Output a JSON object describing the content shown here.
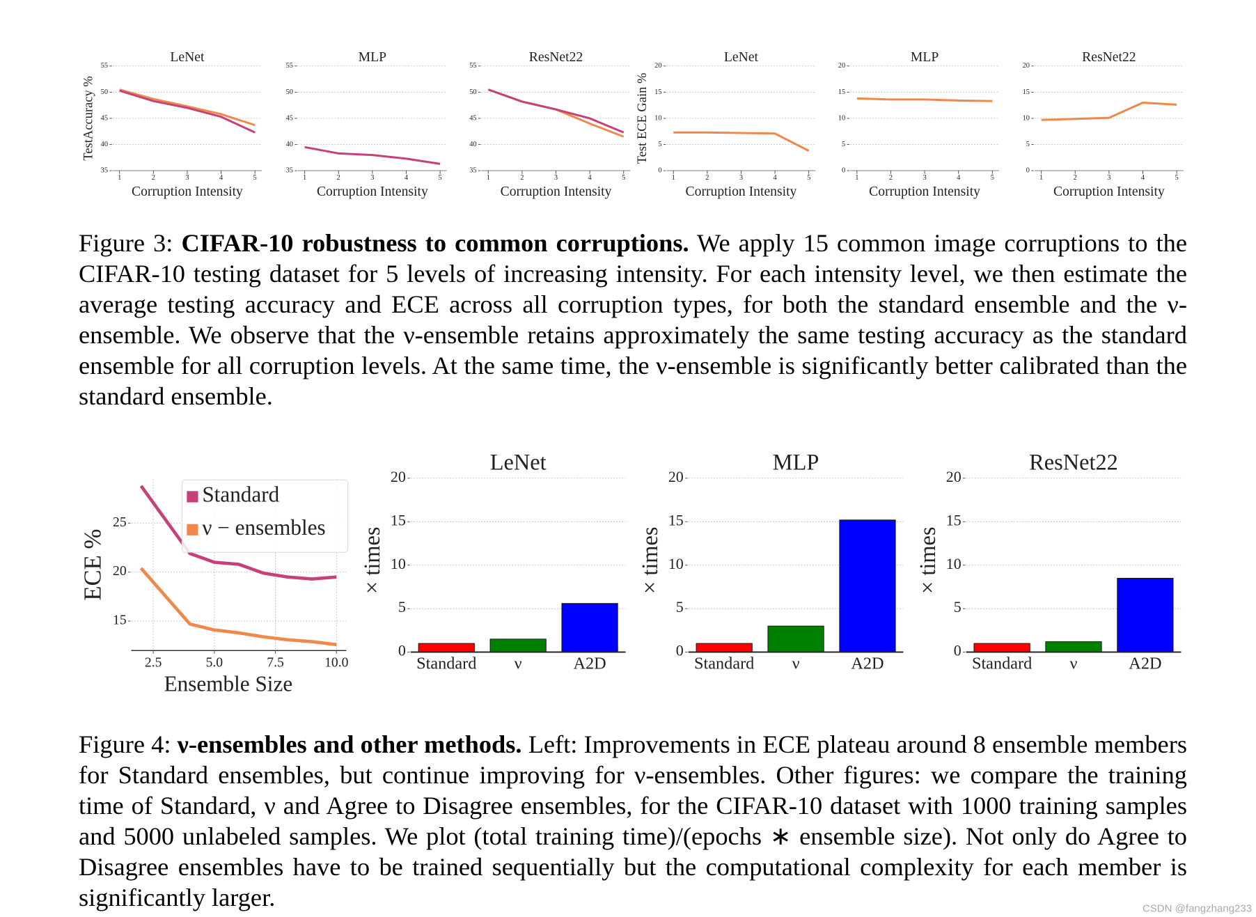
{
  "chart_data": [
    {
      "type": "line",
      "title": "LeNet",
      "ylabel": "TestAccuracy %",
      "xlabel": "Corruption Intensity",
      "x": [
        1,
        2,
        3,
        4,
        5
      ],
      "xlim": [
        0.8,
        5.2
      ],
      "xticks": [
        1,
        2,
        3,
        4,
        5
      ],
      "ylim": [
        35,
        55
      ],
      "yticks": [
        35,
        40,
        45,
        50,
        55
      ],
      "grid": "y",
      "series": [
        {
          "color": "#f0884a",
          "values": [
            50.5,
            48.7,
            47.3,
            45.8,
            43.7
          ]
        },
        {
          "color": "#c8407a",
          "values": [
            50.3,
            48.3,
            47,
            45.3,
            42.3
          ]
        }
      ]
    },
    {
      "type": "line",
      "title": "MLP",
      "xlabel": "Corruption Intensity",
      "x": [
        1,
        2,
        3,
        4,
        5
      ],
      "xlim": [
        0.8,
        5.2
      ],
      "xticks": [
        1,
        2,
        3,
        4,
        5
      ],
      "ylim": [
        35,
        55
      ],
      "yticks": [
        35,
        40,
        45,
        50,
        55
      ],
      "grid": "y",
      "series": [
        {
          "color": "#c8407a",
          "values": [
            39.5,
            38.3,
            38,
            37.3,
            36.3
          ]
        }
      ]
    },
    {
      "type": "line",
      "title": "ResNet22",
      "xlabel": "Corruption Intensity",
      "x": [
        1,
        2,
        3,
        4,
        5
      ],
      "xlim": [
        0.8,
        5.2
      ],
      "xticks": [
        1,
        2,
        3,
        4,
        5
      ],
      "ylim": [
        35,
        55
      ],
      "yticks": [
        35,
        40,
        45,
        50,
        55
      ],
      "grid": "y",
      "series": [
        {
          "color": "#f0884a",
          "values": [
            50.5,
            48.2,
            46.7,
            44,
            41.5
          ]
        },
        {
          "color": "#c8407a",
          "values": [
            50.5,
            48.2,
            46.7,
            45,
            42.3
          ]
        }
      ]
    },
    {
      "type": "line",
      "title": "LeNet",
      "ylabel": "Test ECE Gain %",
      "xlabel": "Corruption Intensity",
      "x": [
        1,
        2,
        3,
        4,
        5
      ],
      "xlim": [
        0.8,
        5.2
      ],
      "xticks": [
        1,
        2,
        3,
        4,
        5
      ],
      "ylim": [
        0,
        20
      ],
      "yticks": [
        0,
        5,
        10,
        15,
        20
      ],
      "grid": "y",
      "series": [
        {
          "color": "#f0884a",
          "values": [
            7.3,
            7.3,
            7.2,
            7.1,
            3.8
          ]
        }
      ]
    },
    {
      "type": "line",
      "title": "MLP",
      "xlabel": "Corruption Intensity",
      "x": [
        1,
        2,
        3,
        4,
        5
      ],
      "xlim": [
        0.8,
        5.2
      ],
      "xticks": [
        1,
        2,
        3,
        4,
        5
      ],
      "ylim": [
        0,
        20
      ],
      "yticks": [
        0,
        5,
        10,
        15,
        20
      ],
      "grid": "y",
      "series": [
        {
          "color": "#f0884a",
          "values": [
            13.8,
            13.6,
            13.6,
            13.4,
            13.3
          ]
        }
      ]
    },
    {
      "type": "line",
      "title": "ResNet22",
      "xlabel": "Corruption Intensity",
      "x": [
        1,
        2,
        3,
        4,
        5
      ],
      "xlim": [
        0.8,
        5.2
      ],
      "xticks": [
        1,
        2,
        3,
        4,
        5
      ],
      "ylim": [
        0,
        20
      ],
      "yticks": [
        0,
        5,
        10,
        15,
        20
      ],
      "grid": "y",
      "series": [
        {
          "color": "#f0884a",
          "values": [
            9.7,
            9.9,
            10.1,
            13,
            12.6
          ]
        }
      ]
    },
    {
      "type": "line",
      "ylabel": "ECE %",
      "xlabel": "Ensemble Size",
      "x": [
        2,
        4,
        5,
        6,
        7,
        8,
        9,
        10
      ],
      "xlim": [
        1.6,
        10.4
      ],
      "xticks": [
        2.5,
        {
          "value": 5,
          "label": "5.0"
        },
        7.5,
        {
          "value": 10,
          "label": "10.0"
        }
      ],
      "ylim": [
        12,
        29.5
      ],
      "yticks": [
        15,
        20,
        25
      ],
      "grid": "both",
      "legend": "upper right",
      "series": [
        {
          "name": "Standard",
          "color": "#c8407a",
          "values": [
            28.8,
            21.9,
            21,
            20.8,
            19.9,
            19.5,
            19.3,
            19.5
          ]
        },
        {
          "name": "ν − ensembles",
          "color": "#f0884a",
          "values": [
            20.4,
            14.7,
            14.1,
            13.8,
            13.4,
            13.1,
            12.9,
            12.6
          ]
        }
      ]
    },
    {
      "type": "bar",
      "title": "LeNet",
      "ylabel": "× times",
      "categories": [
        "Standard",
        "ν",
        "A2D"
      ],
      "values": [
        1,
        1.5,
        5.6
      ],
      "colors": [
        "#ff0000",
        "#008000",
        "#0000ff"
      ],
      "ylim": [
        0,
        20
      ],
      "yticks": [
        0,
        5,
        10,
        15,
        20
      ],
      "grid": "y"
    },
    {
      "type": "bar",
      "title": "MLP",
      "ylabel": "× times",
      "categories": [
        "Standard",
        "ν",
        "A2D"
      ],
      "values": [
        1,
        3,
        15.2
      ],
      "colors": [
        "#ff0000",
        "#008000",
        "#0000ff"
      ],
      "ylim": [
        0,
        20
      ],
      "yticks": [
        0,
        5,
        10,
        15,
        20
      ],
      "grid": "y"
    },
    {
      "type": "bar",
      "title": "ResNet22",
      "ylabel": "× times",
      "categories": [
        "Standard",
        "ν",
        "A2D"
      ],
      "values": [
        1,
        1.2,
        8.5
      ],
      "colors": [
        "#ff0000",
        "#008000",
        "#0000ff"
      ],
      "ylim": [
        0,
        20
      ],
      "yticks": [
        0,
        5,
        10,
        15,
        20
      ],
      "grid": "y"
    }
  ],
  "figure_3": {
    "label": "Figure 3:",
    "bold": "CIFAR-10 robustness to common corruptions.",
    "text": "We apply 15 common image corruptions to the CIFAR-10 testing dataset for 5 levels of increasing intensity. For each intensity level, we then estimate the average testing accuracy and ECE across all corruption types, for both the standard ensemble and the ν-ensemble. We observe that the ν-ensemble retains approximately the same testing accuracy as the standard ensemble for all corruption levels. At the same time, the ν-ensemble is significantly better calibrated than the standard ensemble."
  },
  "figure_4": {
    "label": "Figure 4:",
    "bold": "ν-ensembles and other methods.",
    "text": "Left: Improvements in ECE plateau around 8 ensemble members for Standard ensembles, but continue improving for ν-ensembles. Other figures: we compare the training time of Standard, ν and Agree to Disagree ensembles, for the CIFAR-10 dataset with 1000 training samples and 5000 unlabeled samples. We plot (total training time)/(epochs ∗ ensemble size). Not only do Agree to Disagree ensembles have to be trained sequentially but the computational complexity for each member is significantly larger."
  },
  "watermark": "CSDN @fangzhang233"
}
